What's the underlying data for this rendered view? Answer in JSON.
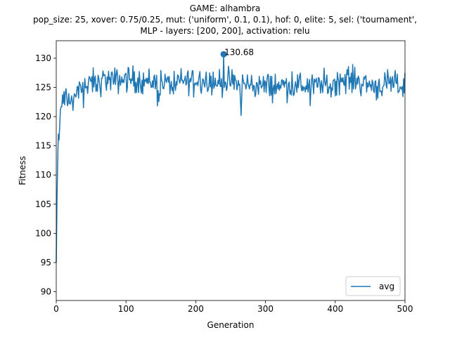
{
  "title": {
    "line1": "GAME: alhambra",
    "line2": "pop_size: 25, xover: 0.75/0.25, mut: ('uniform', 0.1, 0.1), hof: 0, elite: 5, sel: ('tournament',",
    "line3": "MLP - layers: [200, 200], activation: relu"
  },
  "chart_data": {
    "type": "line",
    "title": "GAME: alhambra pop_size: 25, xover: 0.75/0.25, mut: ('uniform', 0.1, 0.1), hof: 0, elite: 5, sel: ('tournament', MLP - layers: [200, 200], activation: relu",
    "xlabel": "Generation",
    "ylabel": "Fitness",
    "xlim": [
      0,
      500
    ],
    "ylim": [
      88.5,
      133
    ],
    "xticks": [
      0,
      100,
      200,
      300,
      400,
      500
    ],
    "yticks": [
      90,
      95,
      100,
      105,
      110,
      115,
      120,
      125,
      130
    ],
    "grid": false,
    "legend_position": "lower right",
    "color": "#1f77b4",
    "series": [
      {
        "name": "avg",
        "anchors": [
          [
            0,
            95.0
          ],
          [
            1,
            105.0
          ],
          [
            2,
            112.0
          ],
          [
            3,
            117.0
          ],
          [
            4,
            116.0
          ],
          [
            5,
            118.5
          ],
          [
            6,
            121.0
          ],
          [
            7,
            122.0
          ],
          [
            8,
            121.5
          ],
          [
            9,
            123.0
          ],
          [
            10,
            122.0
          ],
          [
            11,
            124.0
          ],
          [
            12,
            122.5
          ],
          [
            14,
            124.5
          ],
          [
            16,
            121.5
          ],
          [
            18,
            123.5
          ],
          [
            20,
            122.0
          ],
          [
            22,
            124.0
          ],
          [
            24,
            120.5
          ],
          [
            26,
            124.5
          ],
          [
            28,
            123.0
          ],
          [
            30,
            125.0
          ],
          [
            35,
            124.0
          ],
          [
            40,
            126.0
          ],
          [
            45,
            124.5
          ],
          [
            50,
            126.0
          ],
          [
            60,
            125.5
          ],
          [
            70,
            126.5
          ],
          [
            80,
            126.0
          ],
          [
            100,
            126.5
          ],
          [
            120,
            126.2
          ],
          [
            140,
            126.0
          ],
          [
            160,
            125.6
          ],
          [
            180,
            126.0
          ],
          [
            200,
            126.5
          ],
          [
            220,
            126.3
          ],
          [
            238,
            125.5
          ],
          [
            240,
            126.0
          ],
          [
            260,
            125.5
          ],
          [
            280,
            125.5
          ],
          [
            300,
            125.2
          ],
          [
            320,
            125.3
          ],
          [
            340,
            125.5
          ],
          [
            360,
            125.3
          ],
          [
            380,
            125.5
          ],
          [
            400,
            126.0
          ],
          [
            420,
            126.5
          ],
          [
            440,
            125.8
          ],
          [
            460,
            125.2
          ],
          [
            480,
            125.5
          ],
          [
            500,
            125.2
          ]
        ],
        "noise_amplitude": 1.6
      }
    ],
    "annotations": [
      {
        "x": 240,
        "y": 130.68,
        "text": "130.68"
      }
    ]
  }
}
